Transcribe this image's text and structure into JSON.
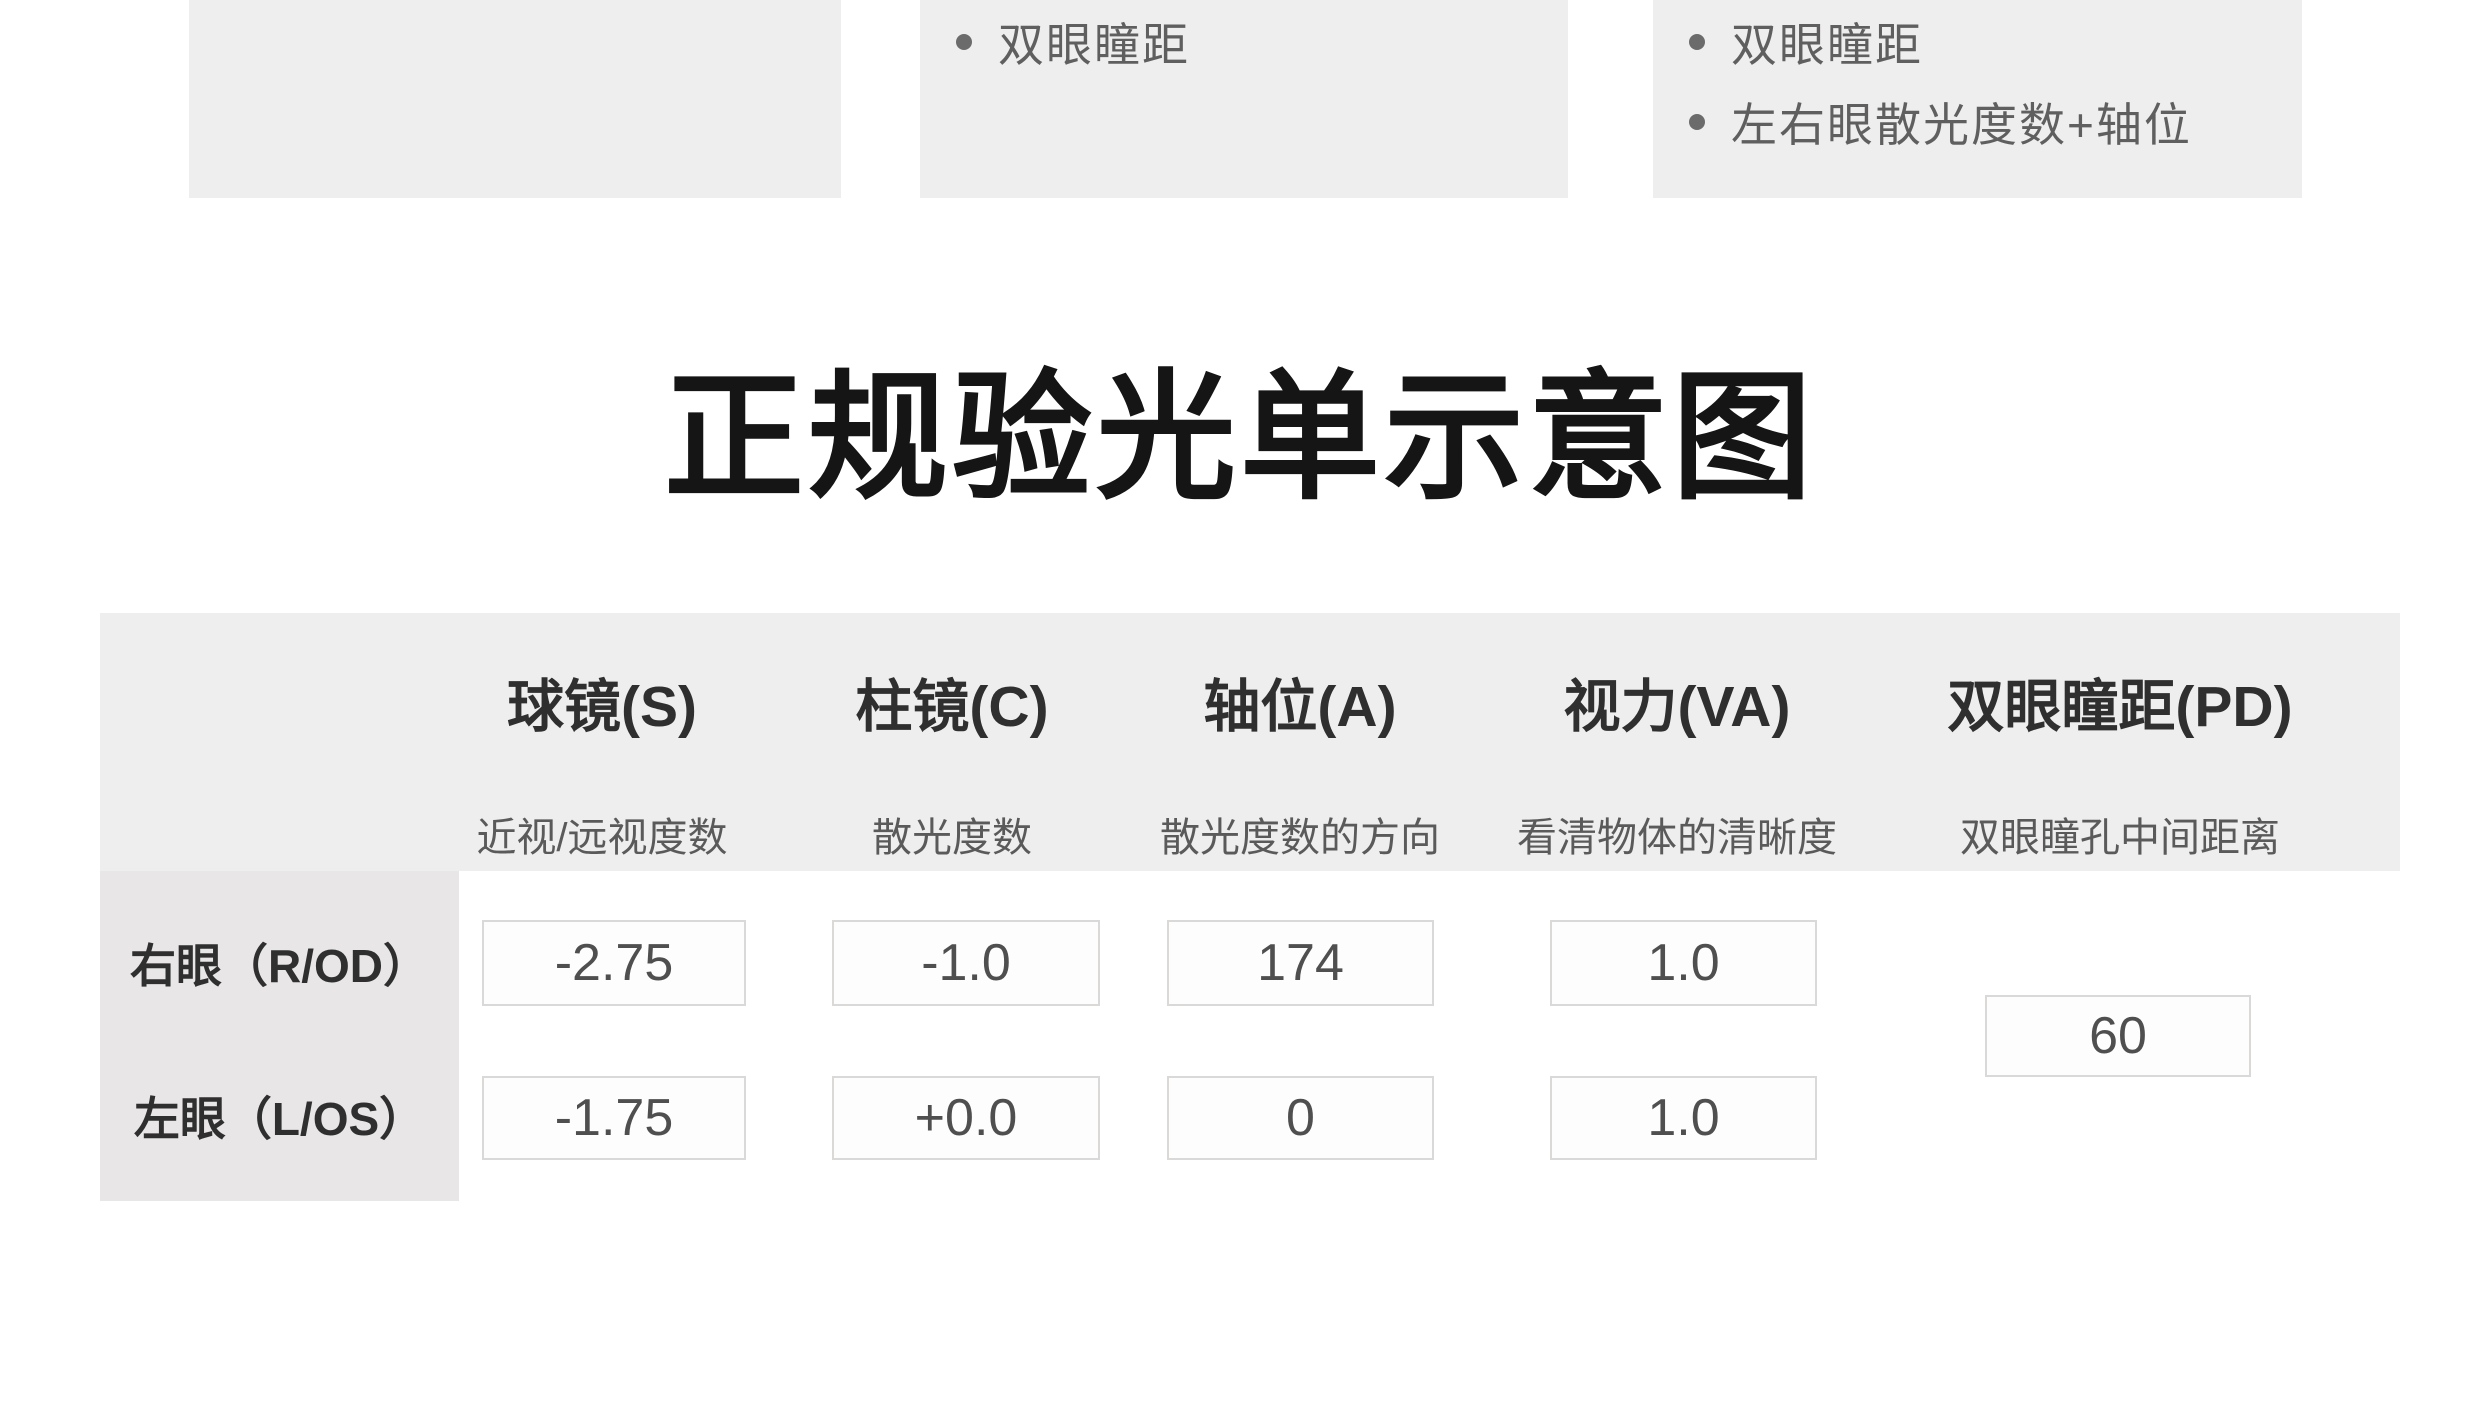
{
  "top_notes": {
    "card1": {
      "items": []
    },
    "card2": {
      "items": [
        "双眼瞳距"
      ]
    },
    "card3": {
      "items": [
        "双眼瞳距",
        "左右眼散光度数+轴位"
      ]
    }
  },
  "title": "正规验光单示意图",
  "table": {
    "columns": [
      {
        "label": "球镜(S)",
        "sublabel": "近视/远视度数"
      },
      {
        "label": "柱镜(C)",
        "sublabel": "散光度数"
      },
      {
        "label": "轴位(A)",
        "sublabel": "散光度数的方向"
      },
      {
        "label": "视力(VA)",
        "sublabel": "看清物体的清晰度"
      },
      {
        "label": "双眼瞳距(PD)",
        "sublabel": "双眼瞳孔中间距离"
      }
    ],
    "rows": [
      {
        "label": "右眼（R/OD）",
        "values": [
          "-2.75",
          "-1.0",
          "174",
          "1.0"
        ]
      },
      {
        "label": "左眼（L/OS）",
        "values": [
          "-1.75",
          "+0.0",
          "0",
          "1.0"
        ]
      }
    ],
    "pd_value": "60"
  },
  "colors": {
    "card_bg": "#efeeee",
    "label_column_bg": "#e8e6e6",
    "title_text": "#151515",
    "value_text": "#4f4f4f",
    "box_border": "#dbd9d8"
  }
}
